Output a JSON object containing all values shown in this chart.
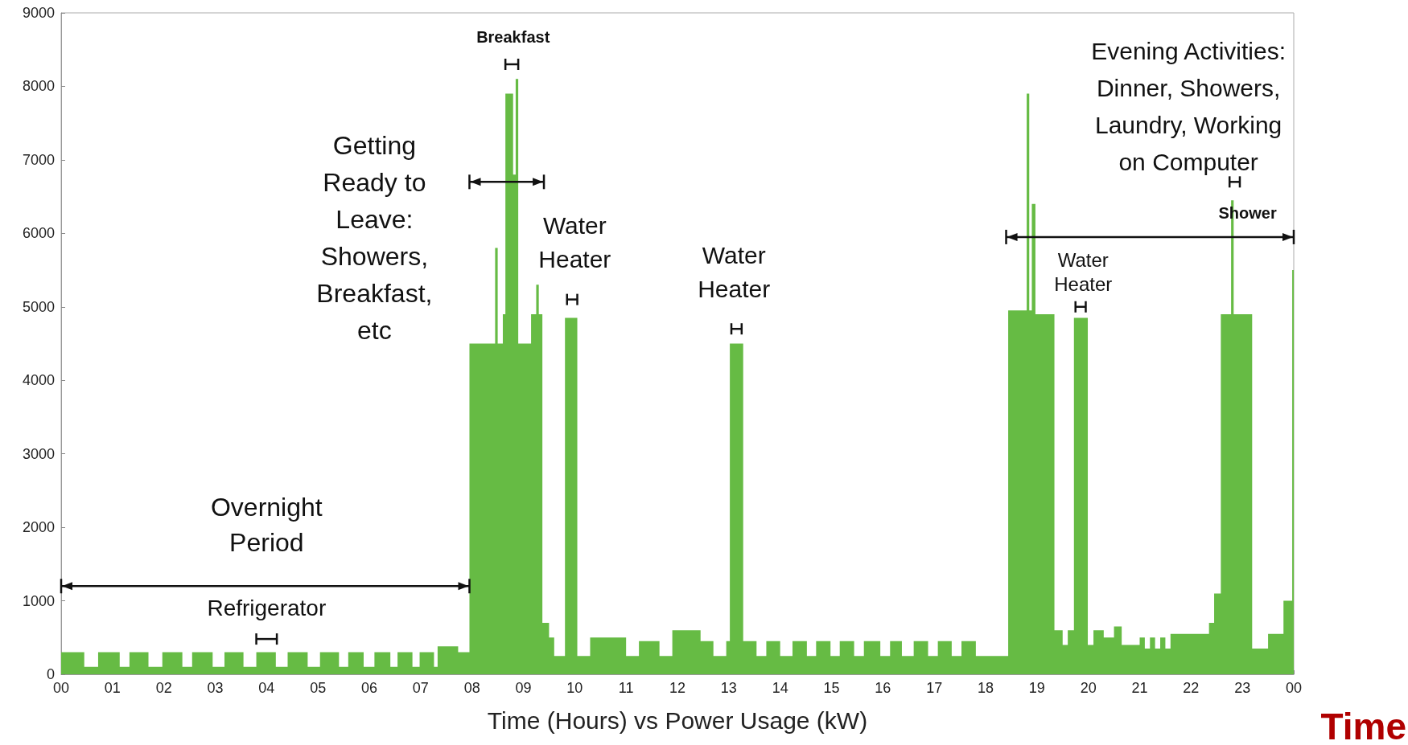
{
  "chart_data": {
    "type": "area",
    "xlabel": "Time (Hours) vs Power Usage (kW)",
    "annotations": [
      "Time",
      "Overnight Period",
      "Refrigerator",
      "Getting Ready to Leave: Showers, Breakfast, etc",
      "Breakfast",
      "Water Heater",
      "Water Heater",
      "Evening Activities: Dinner, Showers, Laundry, Working on Computer",
      "Water Heater",
      "Shower"
    ],
    "color": "#66bb44",
    "marker": "none",
    "x": [
      0,
      0.45,
      0.72,
      1.14,
      1.33,
      1.7,
      1.97,
      2.36,
      2.55,
      2.95,
      3.18,
      3.55,
      3.8,
      4.18,
      4.41,
      4.8,
      5.04,
      5.41,
      5.59,
      5.89,
      6.1,
      6.41,
      6.55,
      6.84,
      6.98,
      7.26,
      7.33,
      7.73,
      7.95,
      8.45,
      8.5,
      8.6,
      8.65,
      8.8,
      8.85,
      8.9,
      9.15,
      9.25,
      9.3,
      9.37,
      9.5,
      9.6,
      9.81,
      10.05,
      10.3,
      11.0,
      11.25,
      11.65,
      11.9,
      12.45,
      12.7,
      12.95,
      13.02,
      13.28,
      13.54,
      13.73,
      14.0,
      14.24,
      14.52,
      14.7,
      14.98,
      15.16,
      15.44,
      15.63,
      15.95,
      16.14,
      16.37,
      16.6,
      16.88,
      17.07,
      17.34,
      17.53,
      17.81,
      18.44,
      18.8,
      18.85,
      18.9,
      18.97,
      19.34,
      19.5,
      19.6,
      19.72,
      19.99,
      20.1,
      20.3,
      20.5,
      20.65,
      21.0,
      21.1,
      21.2,
      21.3,
      21.4,
      21.5,
      21.6,
      22.35,
      22.45,
      22.58,
      22.78,
      22.83,
      23.19,
      23.5,
      23.8,
      23.97,
      24
    ],
    "values": [
      300,
      100,
      300,
      100,
      300,
      100,
      300,
      100,
      300,
      100,
      300,
      100,
      300,
      100,
      300,
      100,
      300,
      100,
      300,
      100,
      300,
      100,
      300,
      100,
      300,
      100,
      380,
      300,
      4500,
      5800,
      4500,
      4900,
      7900,
      6800,
      8100,
      4500,
      4900,
      5300,
      4900,
      700,
      500,
      250,
      4850,
      250,
      500,
      250,
      450,
      250,
      600,
      450,
      250,
      450,
      4500,
      450,
      250,
      450,
      250,
      450,
      250,
      450,
      250,
      450,
      250,
      450,
      250,
      450,
      250,
      450,
      250,
      450,
      250,
      450,
      250,
      4950,
      7900,
      4950,
      6400,
      4900,
      600,
      400,
      600,
      4850,
      400,
      600,
      500,
      650,
      400,
      500,
      350,
      500,
      350,
      500,
      350,
      550,
      700,
      1100,
      4900,
      6450,
      4900,
      350,
      550,
      1000,
      5500,
      5500
    ],
    "xlim": [
      0,
      24
    ],
    "xticks": [
      {
        "value": 0,
        "label": "00"
      },
      {
        "value": 1,
        "label": "01"
      },
      {
        "value": 2,
        "label": "02"
      },
      {
        "value": 3,
        "label": "03"
      },
      {
        "value": 4,
        "label": "04"
      },
      {
        "value": 5,
        "label": "05"
      },
      {
        "value": 6,
        "label": "06"
      },
      {
        "value": 7,
        "label": "07"
      },
      {
        "value": 8,
        "label": "08"
      },
      {
        "value": 9,
        "label": "09"
      },
      {
        "value": 10,
        "label": "10"
      },
      {
        "value": 11,
        "label": "11"
      },
      {
        "value": 12,
        "label": "12"
      },
      {
        "value": 13,
        "label": "13"
      },
      {
        "value": 14,
        "label": "14"
      },
      {
        "value": 15,
        "label": "15"
      },
      {
        "value": 16,
        "label": "16"
      },
      {
        "value": 17,
        "label": "17"
      },
      {
        "value": 18,
        "label": "18"
      },
      {
        "value": 19,
        "label": "19"
      },
      {
        "value": 20,
        "label": "20"
      },
      {
        "value": 21,
        "label": "21"
      },
      {
        "value": 22,
        "label": "22"
      },
      {
        "value": 23,
        "label": "23"
      },
      {
        "value": 24,
        "label": "00"
      }
    ],
    "ylim": [
      0,
      9000
    ],
    "yticks": [
      0,
      1000,
      2000,
      3000,
      4000,
      5000,
      6000,
      7000,
      8000,
      9000
    ]
  }
}
